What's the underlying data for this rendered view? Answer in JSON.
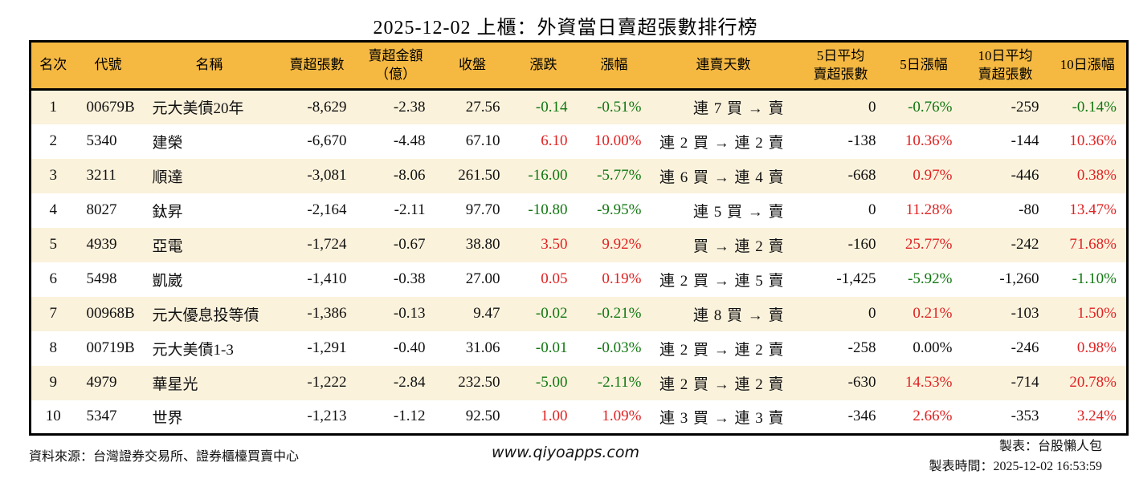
{
  "title": "2025-12-02 上櫃：外資當日賣超張數排行榜",
  "colors": {
    "header_bg": "#F5B942",
    "row_alt_bg": "#FBF2DC",
    "up_red": "#E02222",
    "down_green": "#117711"
  },
  "table": {
    "columns": [
      {
        "id": "rank",
        "label": "名次",
        "align": "center"
      },
      {
        "id": "code",
        "label": "代號",
        "align": "left"
      },
      {
        "id": "name",
        "label": "名稱",
        "align": "left"
      },
      {
        "id": "sell_shares",
        "label": "賣超張數",
        "align": "right"
      },
      {
        "id": "sell_amount",
        "label": "賣超金額\n（億）",
        "align": "right"
      },
      {
        "id": "close",
        "label": "收盤",
        "align": "right"
      },
      {
        "id": "change",
        "label": "漲跌",
        "align": "right",
        "tone_key": "change_tone"
      },
      {
        "id": "change_pct",
        "label": "漲幅",
        "align": "right",
        "tone_key": "change_tone"
      },
      {
        "id": "streak",
        "label": "連賣天數",
        "align": "right"
      },
      {
        "id": "avg5",
        "label": "5日平均\n賣超張數",
        "align": "right"
      },
      {
        "id": "pct5",
        "label": "5日漲幅",
        "align": "right",
        "tone_key": "pct5_tone"
      },
      {
        "id": "avg10",
        "label": "10日平均\n賣超張數",
        "align": "right"
      },
      {
        "id": "pct10",
        "label": "10日漲幅",
        "align": "right",
        "tone_key": "pct10_tone"
      }
    ],
    "rows": [
      {
        "rank": "1",
        "code": "00679B",
        "name": "元大美債20年",
        "sell_shares": "-8,629",
        "sell_amount": "-2.38",
        "close": "27.56",
        "change": "-0.14",
        "change_pct": "-0.51%",
        "change_tone": "down",
        "streak": "連 7 買 → 賣",
        "avg5": "0",
        "pct5": "-0.76%",
        "pct5_tone": "down",
        "avg10": "-259",
        "pct10": "-0.14%",
        "pct10_tone": "down"
      },
      {
        "rank": "2",
        "code": "5340",
        "name": "建榮",
        "sell_shares": "-6,670",
        "sell_amount": "-4.48",
        "close": "67.10",
        "change": "6.10",
        "change_pct": "10.00%",
        "change_tone": "up",
        "streak": "連 2 買 → 連 2 賣",
        "avg5": "-138",
        "pct5": "10.36%",
        "pct5_tone": "up",
        "avg10": "-144",
        "pct10": "10.36%",
        "pct10_tone": "up"
      },
      {
        "rank": "3",
        "code": "3211",
        "name": "順達",
        "sell_shares": "-3,081",
        "sell_amount": "-8.06",
        "close": "261.50",
        "change": "-16.00",
        "change_pct": "-5.77%",
        "change_tone": "down",
        "streak": "連 6 買 → 連 4 賣",
        "avg5": "-668",
        "pct5": "0.97%",
        "pct5_tone": "up",
        "avg10": "-446",
        "pct10": "0.38%",
        "pct10_tone": "up"
      },
      {
        "rank": "4",
        "code": "8027",
        "name": "鈦昇",
        "sell_shares": "-2,164",
        "sell_amount": "-2.11",
        "close": "97.70",
        "change": "-10.80",
        "change_pct": "-9.95%",
        "change_tone": "down",
        "streak": "連 5 買 → 賣",
        "avg5": "0",
        "pct5": "11.28%",
        "pct5_tone": "up",
        "avg10": "-80",
        "pct10": "13.47%",
        "pct10_tone": "up"
      },
      {
        "rank": "5",
        "code": "4939",
        "name": "亞電",
        "sell_shares": "-1,724",
        "sell_amount": "-0.67",
        "close": "38.80",
        "change": "3.50",
        "change_pct": "9.92%",
        "change_tone": "up",
        "streak": "買 → 連 2 賣",
        "avg5": "-160",
        "pct5": "25.77%",
        "pct5_tone": "up",
        "avg10": "-242",
        "pct10": "71.68%",
        "pct10_tone": "up"
      },
      {
        "rank": "6",
        "code": "5498",
        "name": "凱崴",
        "sell_shares": "-1,410",
        "sell_amount": "-0.38",
        "close": "27.00",
        "change": "0.05",
        "change_pct": "0.19%",
        "change_tone": "up",
        "streak": "連 2 買 → 連 5 賣",
        "avg5": "-1,425",
        "pct5": "-5.92%",
        "pct5_tone": "down",
        "avg10": "-1,260",
        "pct10": "-1.10%",
        "pct10_tone": "down"
      },
      {
        "rank": "7",
        "code": "00968B",
        "name": "元大優息投等債",
        "sell_shares": "-1,386",
        "sell_amount": "-0.13",
        "close": "9.47",
        "change": "-0.02",
        "change_pct": "-0.21%",
        "change_tone": "down",
        "streak": "連 8 買 → 賣",
        "avg5": "0",
        "pct5": "0.21%",
        "pct5_tone": "up",
        "avg10": "-103",
        "pct10": "1.50%",
        "pct10_tone": "up"
      },
      {
        "rank": "8",
        "code": "00719B",
        "name": "元大美債1-3",
        "sell_shares": "-1,291",
        "sell_amount": "-0.40",
        "close": "31.06",
        "change": "-0.01",
        "change_pct": "-0.03%",
        "change_tone": "down",
        "streak": "連 2 買 → 連 2 賣",
        "avg5": "-258",
        "pct5": "0.00%",
        "pct5_tone": "flat",
        "avg10": "-246",
        "pct10": "0.98%",
        "pct10_tone": "up"
      },
      {
        "rank": "9",
        "code": "4979",
        "name": "華星光",
        "sell_shares": "-1,222",
        "sell_amount": "-2.84",
        "close": "232.50",
        "change": "-5.00",
        "change_pct": "-2.11%",
        "change_tone": "down",
        "streak": "連 2 買 → 連 2 賣",
        "avg5": "-630",
        "pct5": "14.53%",
        "pct5_tone": "up",
        "avg10": "-714",
        "pct10": "20.78%",
        "pct10_tone": "up"
      },
      {
        "rank": "10",
        "code": "5347",
        "name": "世界",
        "sell_shares": "-1,213",
        "sell_amount": "-1.12",
        "close": "92.50",
        "change": "1.00",
        "change_pct": "1.09%",
        "change_tone": "up",
        "streak": "連 3 買 → 連 3 賣",
        "avg5": "-346",
        "pct5": "2.66%",
        "pct5_tone": "up",
        "avg10": "-353",
        "pct10": "3.24%",
        "pct10_tone": "up"
      }
    ]
  },
  "footer": {
    "source": "資料來源：台灣證券交易所、證券櫃檯買賣中心",
    "website": "www.qiyoapps.com",
    "maker": "製表：台股懶人包",
    "made_at": "製表時間：2025-12-02 16:53:59"
  }
}
